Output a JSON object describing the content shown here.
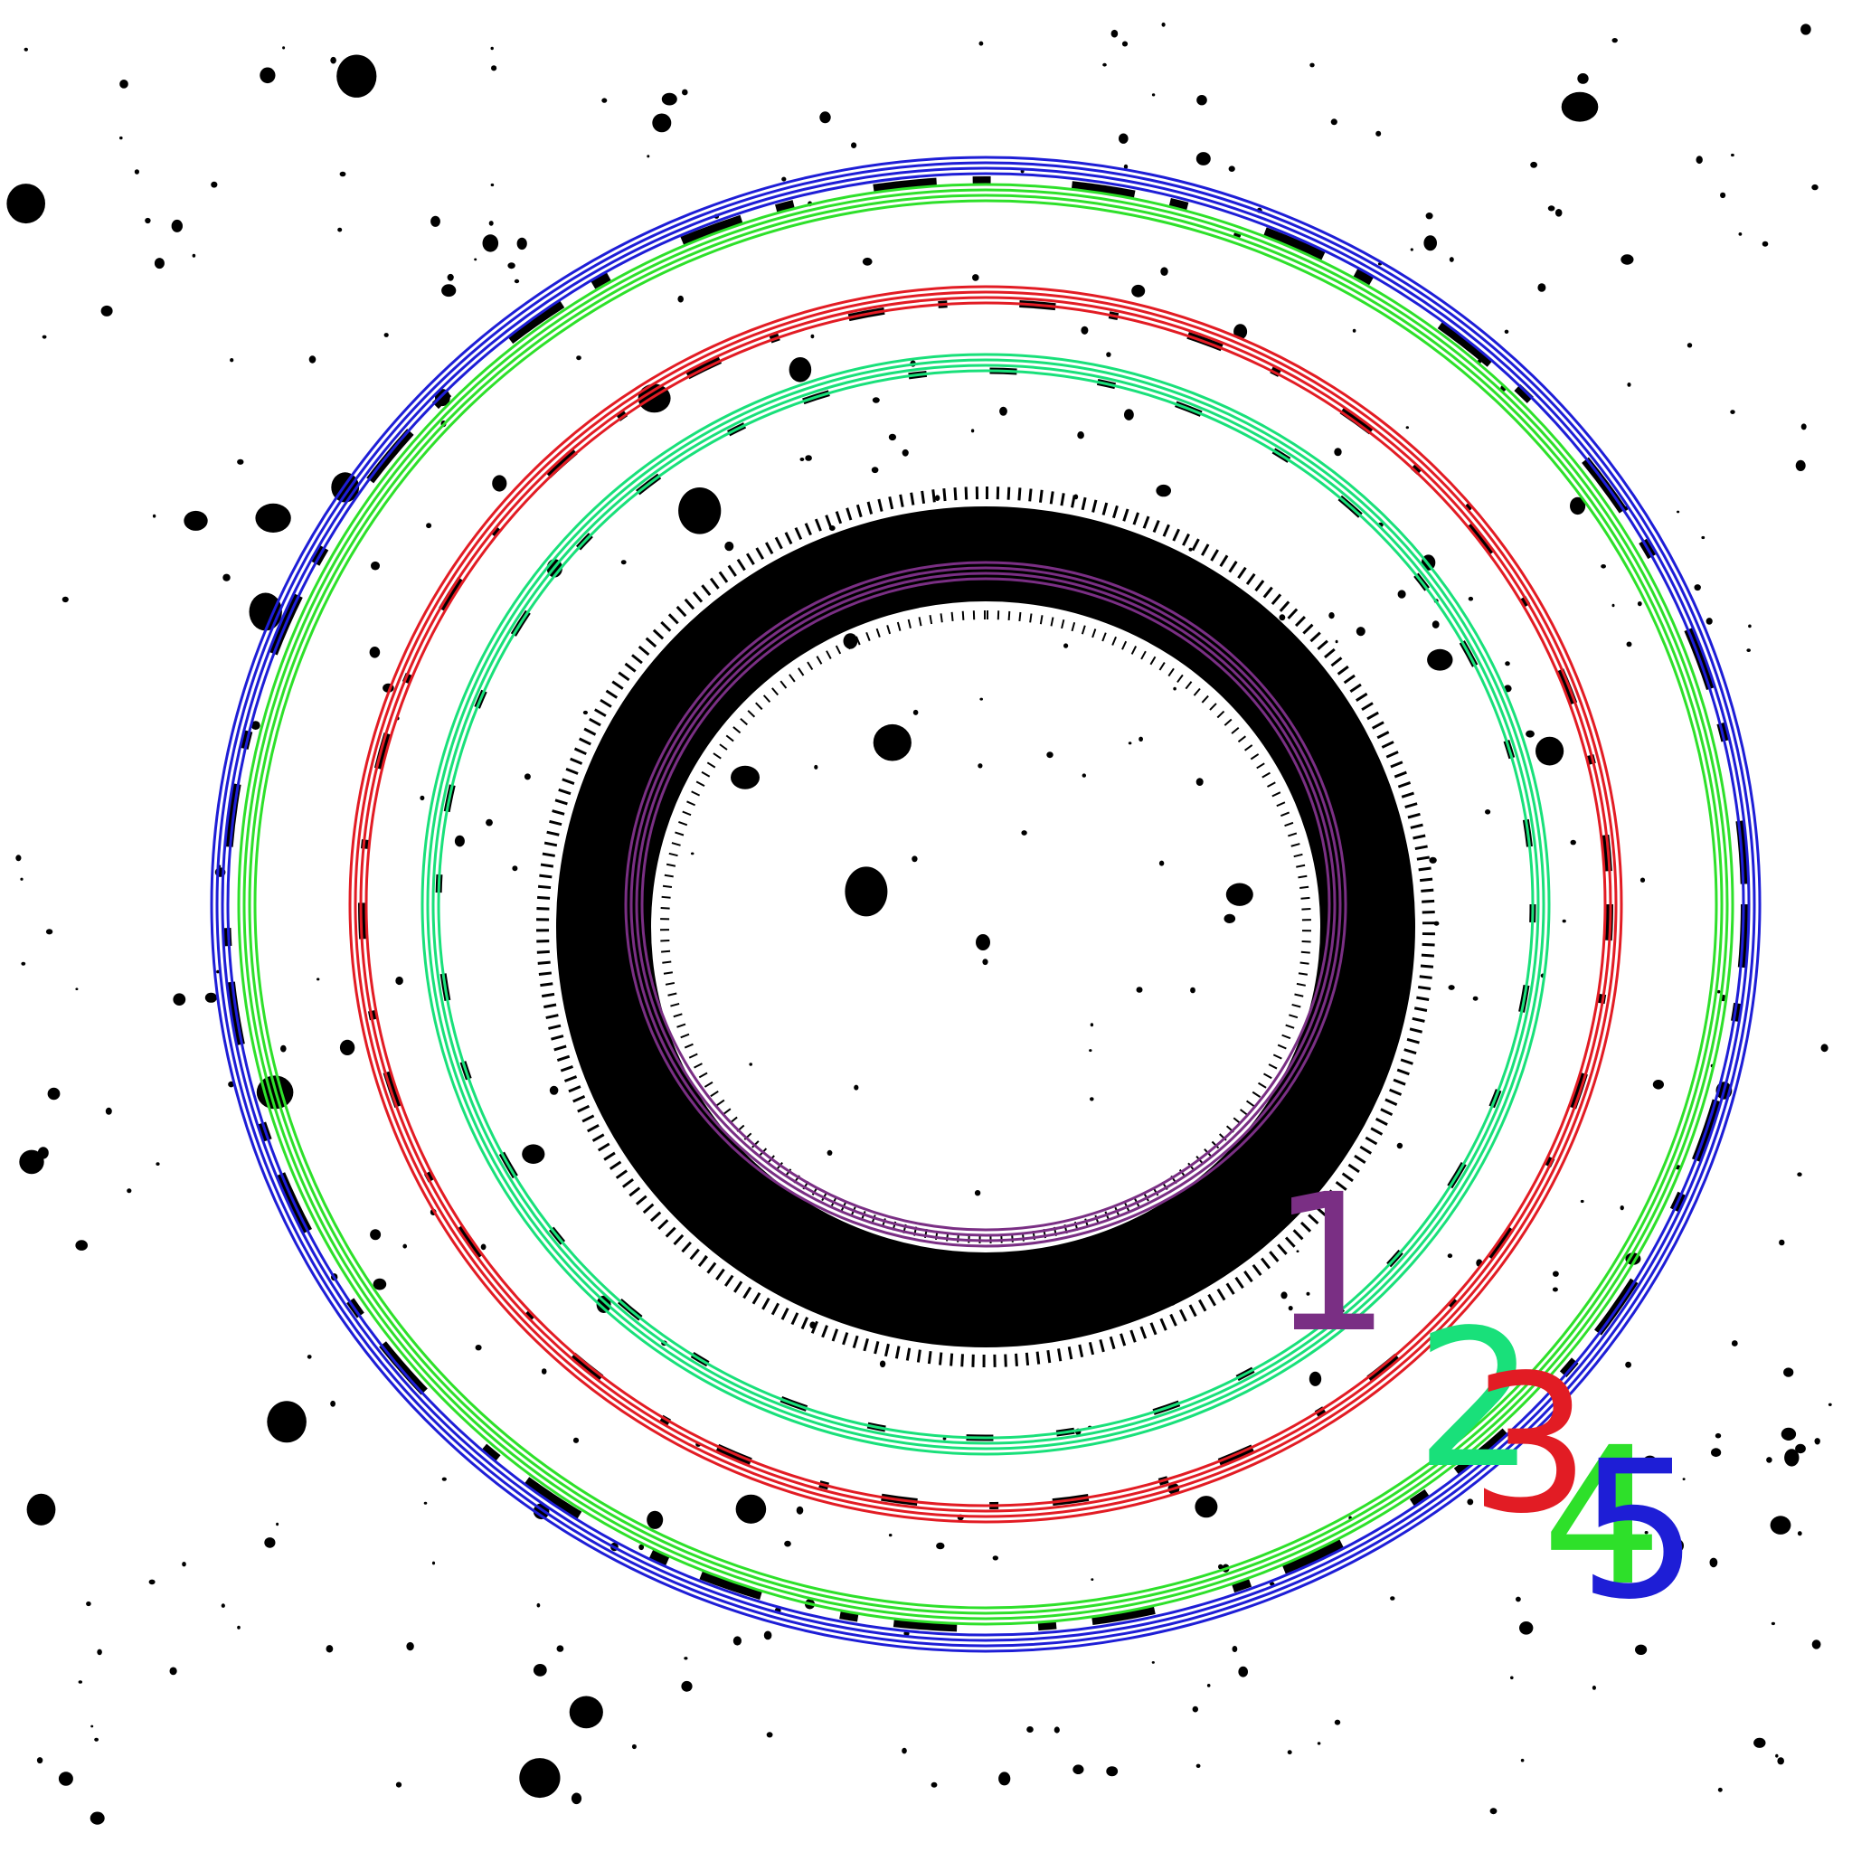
{
  "figure": {
    "kind": "diffraction ring pattern",
    "background": "#ffffff",
    "foreground": "#000000"
  },
  "rings": [
    {
      "label": "1",
      "color": "#7a2f84"
    },
    {
      "label": "2",
      "color": "#19e07a"
    },
    {
      "label": "3",
      "color": "#e21c24"
    },
    {
      "label": "4",
      "color": "#2ee02a"
    },
    {
      "label": "5",
      "color": "#1e1ed6"
    }
  ]
}
